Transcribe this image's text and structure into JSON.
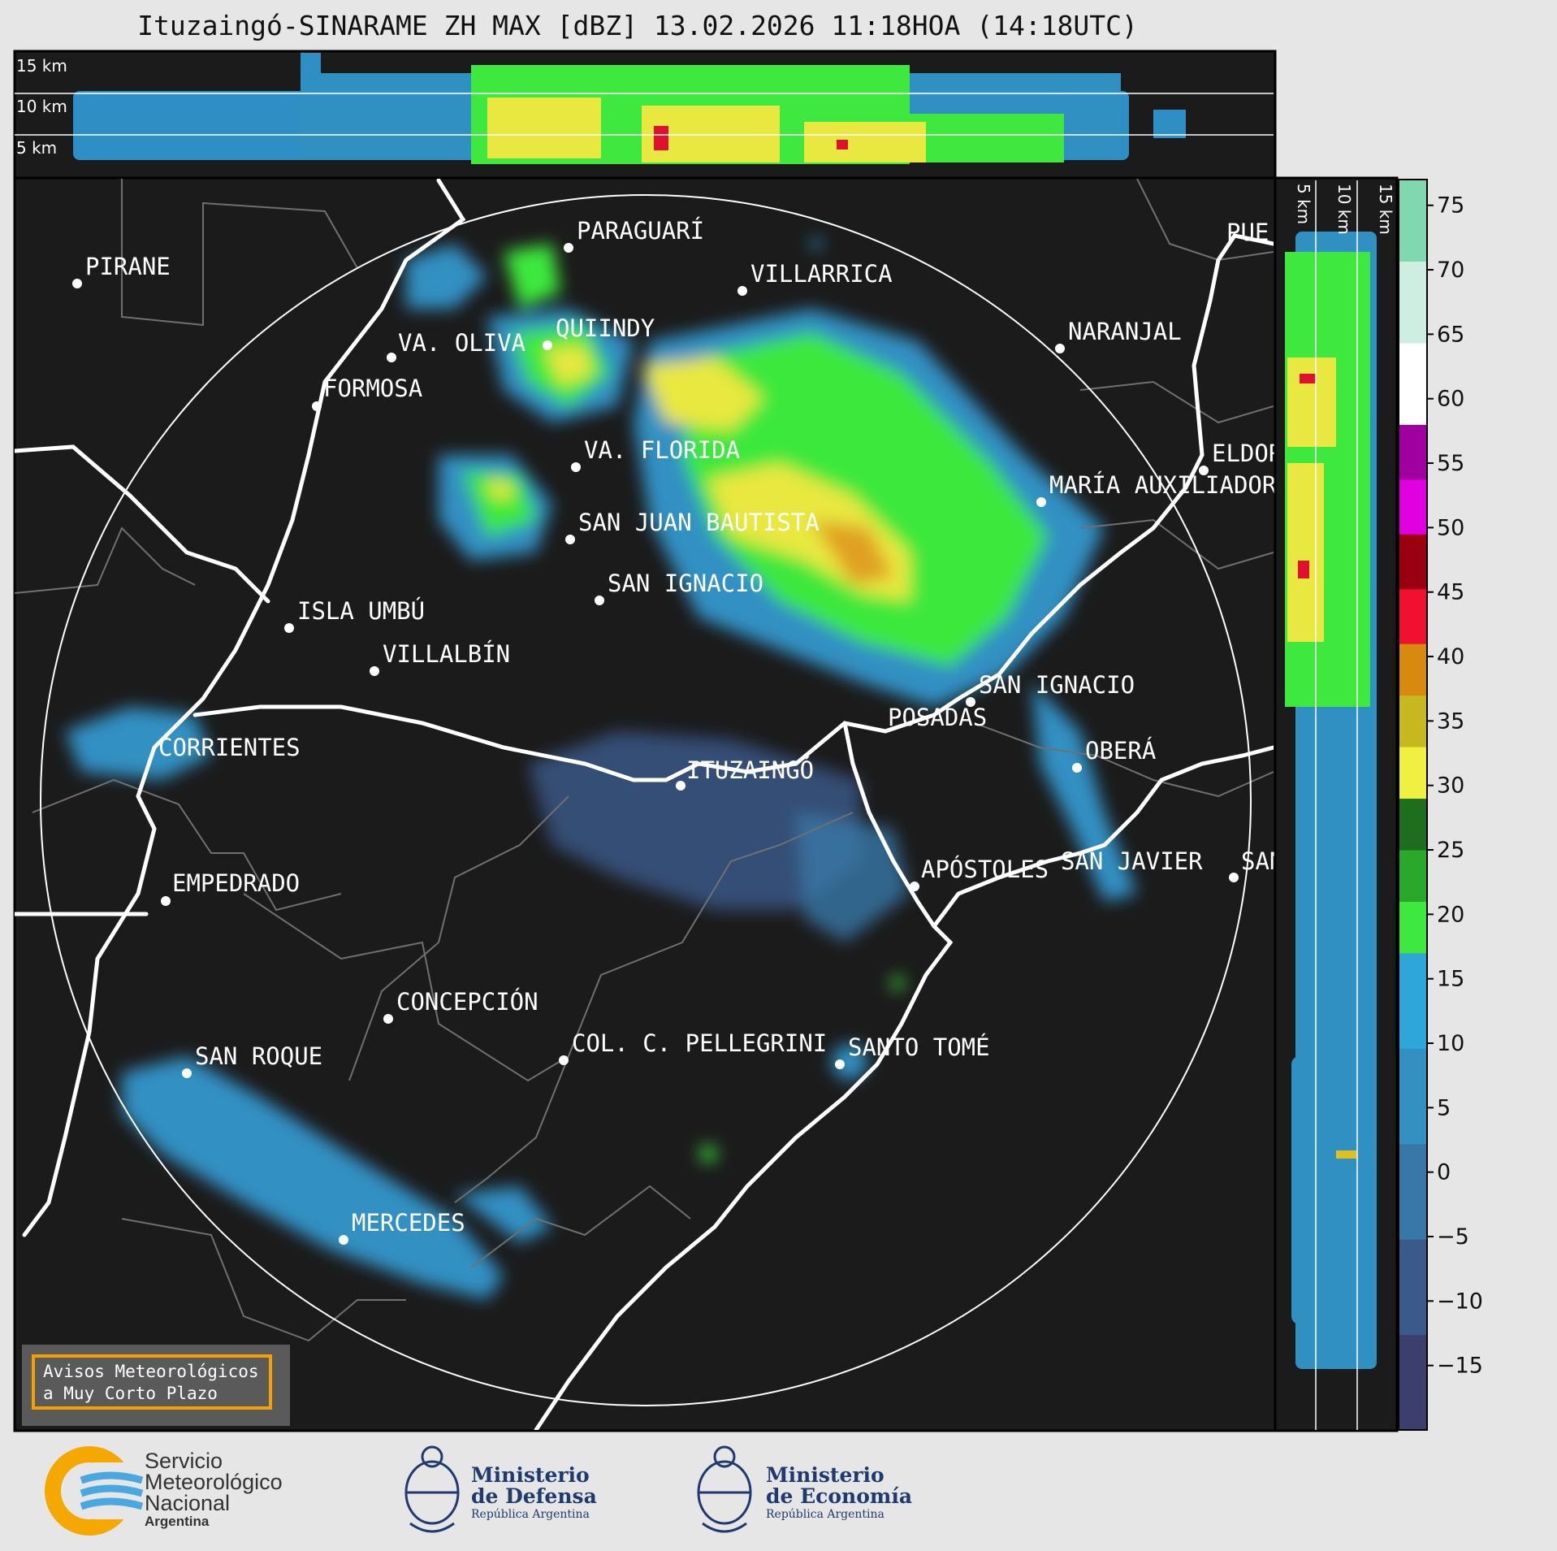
{
  "title": "Ituzaingó-SINARAME ZH MAX [dBZ] 13.02.2026 11:18HOA (14:18UTC)",
  "top_panel": {
    "labels": [
      "15 km",
      "10 km",
      "5 km"
    ]
  },
  "side_panel": {
    "labels": [
      "5 km",
      "10 km",
      "15 km"
    ]
  },
  "cities": [
    {
      "name": "PIRANE"
    },
    {
      "name": "PARAGUARÍ"
    },
    {
      "name": "VILLARRICA"
    },
    {
      "name": "QUIINDY"
    },
    {
      "name": "VA. OLIVA"
    },
    {
      "name": "NARANJAL"
    },
    {
      "name": "FORMOSA"
    },
    {
      "name": "VA. FLORIDA"
    },
    {
      "name": "ELDOR"
    },
    {
      "name": "MARÍA AUXILIADOR"
    },
    {
      "name": "SAN JUAN BAUTISTA"
    },
    {
      "name": "SAN IGNACIO"
    },
    {
      "name": "ISLA UMBÚ"
    },
    {
      "name": "VILLALBÍN"
    },
    {
      "name": "SAN IGNACIO"
    },
    {
      "name": "POSADAS"
    },
    {
      "name": "CORRIENTES"
    },
    {
      "name": "ITUZAINGÓ"
    },
    {
      "name": "OBERÁ"
    },
    {
      "name": "APÓSTOLES"
    },
    {
      "name": "SAN JAVIER"
    },
    {
      "name": "SAN"
    },
    {
      "name": "EMPEDRADO"
    },
    {
      "name": "CONCEPCIÓN"
    },
    {
      "name": "COL. C. PELLEGRINI"
    },
    {
      "name": "SANTO TOMÉ"
    },
    {
      "name": "SAN ROQUE"
    },
    {
      "name": "MERCEDES"
    },
    {
      "name": "PUE"
    }
  ],
  "colorbar": {
    "unit": "dBZ",
    "ticks": [
      "75",
      "70",
      "65",
      "60",
      "55",
      "50",
      "45",
      "40",
      "35",
      "30",
      "25",
      "20",
      "15",
      "10",
      "5",
      "0",
      "−5",
      "−10",
      "−15"
    ],
    "range": [
      -20,
      77
    ],
    "segments": [
      {
        "from": -20,
        "to": 17,
        "colors": [
          "#3c3f6b",
          "#3b5a8c",
          "#3878a8",
          "#3390c0",
          "#2ea7d8"
        ]
      },
      {
        "from": 17,
        "to": 29,
        "colors": [
          "#3ee83e",
          "#2aa82a",
          "#1e6e1e"
        ]
      },
      {
        "from": 29,
        "to": 41,
        "colors": [
          "#f0f040",
          "#c8b820",
          "#d88a10"
        ]
      },
      {
        "from": 41,
        "to": 58,
        "colors": [
          "#f01030",
          "#9a0010",
          "#e000e0",
          "#a000a0"
        ]
      },
      {
        "from": 58,
        "to": 77,
        "colors": [
          "#ffffff",
          "#cdeee0",
          "#80d8b0"
        ]
      }
    ]
  },
  "warning": {
    "line1": "Avisos Meteorológicos",
    "line2": "a Muy Corto Plazo"
  },
  "logos": {
    "smn": {
      "line1": "Servicio",
      "line2": "Meteorológico",
      "line3": "Nacional",
      "line4": "Argentina"
    },
    "defensa": {
      "line1": "Ministerio",
      "line2": "de Defensa",
      "line3": "República Argentina"
    },
    "economia": {
      "line1": "Ministerio",
      "line2": "de Economía",
      "line3": "República Argentina"
    }
  }
}
